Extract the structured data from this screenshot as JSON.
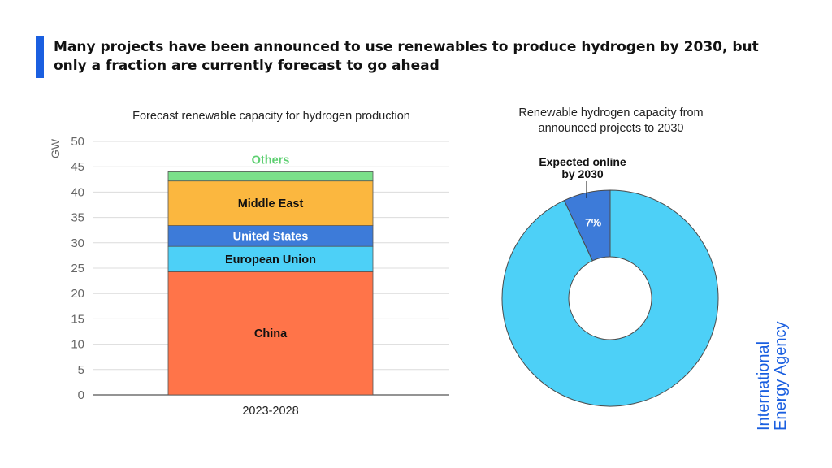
{
  "headline": "Many projects have been announced to use renewables to produce hydrogen by 2030, but only a fraction are currently forecast to go ahead",
  "logo": {
    "line1": "International",
    "line2": "Energy Agency"
  },
  "colors": {
    "accent": "#1a5fe0",
    "China": "#ff7449",
    "European Union": "#4dd0f7",
    "United States": "#3d7bd9",
    "Middle East": "#fbb73f",
    "Others": "#7be08a"
  },
  "chart_data": [
    {
      "type": "bar",
      "stacked": true,
      "title": "Forecast renewable capacity for hydrogen production",
      "ylabel": "GW",
      "ylim": [
        0,
        50
      ],
      "yticks": [
        0,
        5,
        10,
        15,
        20,
        25,
        30,
        35,
        40,
        45,
        50
      ],
      "grid": true,
      "categories": [
        "2023-2028"
      ],
      "series": [
        {
          "name": "China",
          "values": [
            24.3
          ],
          "color": "#ff7449"
        },
        {
          "name": "European Union",
          "values": [
            5.0
          ],
          "color": "#4dd0f7"
        },
        {
          "name": "United States",
          "values": [
            4.1
          ],
          "color": "#3d7bd9"
        },
        {
          "name": "Middle East",
          "values": [
            8.8
          ],
          "color": "#fbb73f"
        },
        {
          "name": "Others",
          "values": [
            1.8
          ],
          "color": "#7be08a"
        }
      ]
    },
    {
      "type": "pie",
      "donut": true,
      "title": "Renewable hydrogen capacity from announced projects to 2030",
      "slices": [
        {
          "name": "Expected online by 2030",
          "value": 7,
          "label": "7%",
          "color": "#3d7bd9"
        },
        {
          "name": "",
          "value": 93,
          "color": "#4dd0f7"
        }
      ],
      "annotation": {
        "line1": "Expected online",
        "line2": "by 2030"
      }
    }
  ]
}
